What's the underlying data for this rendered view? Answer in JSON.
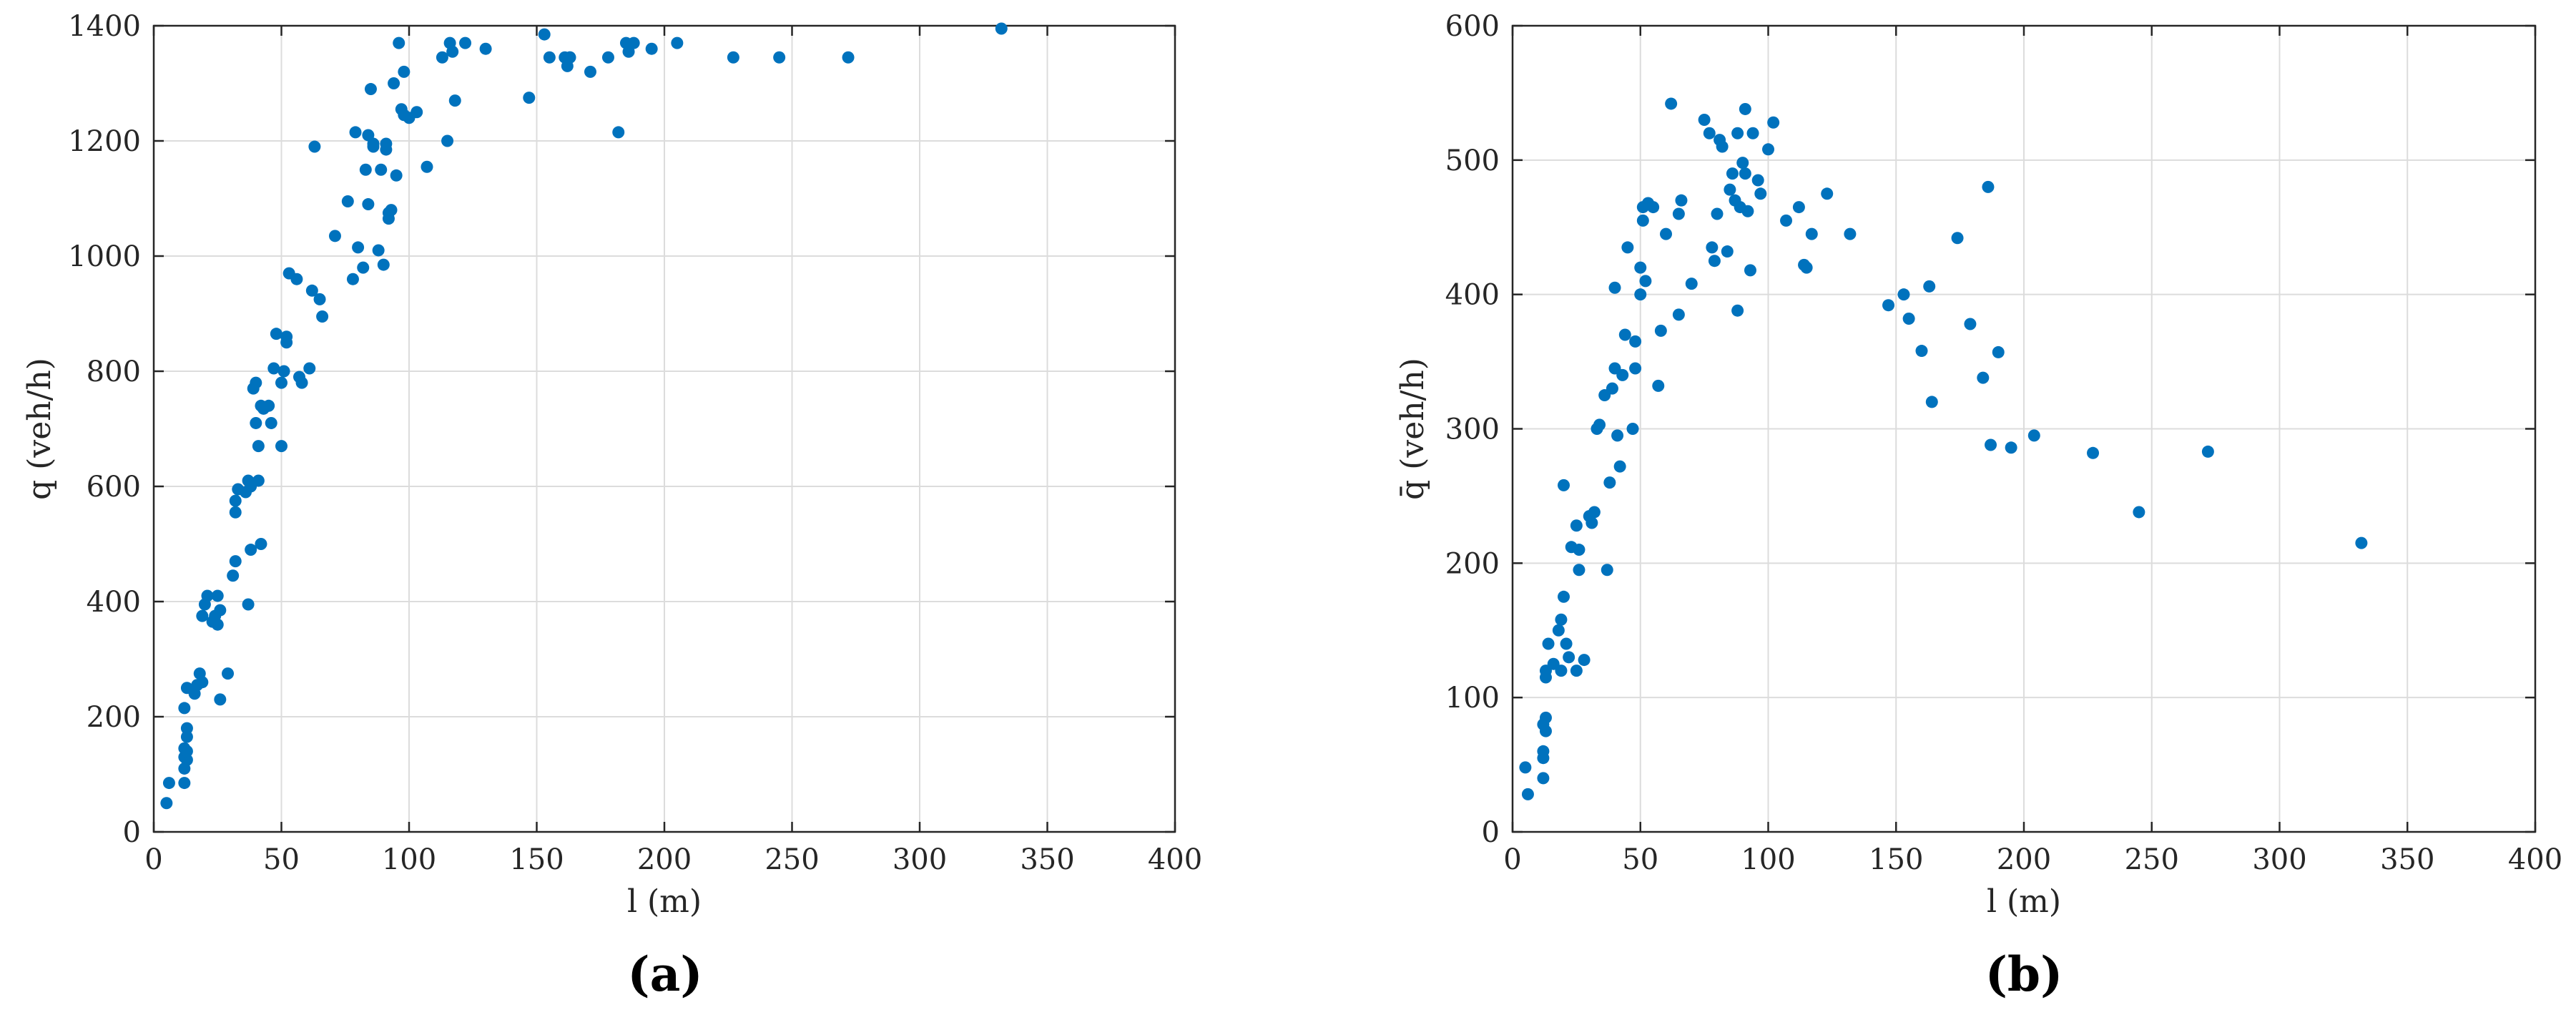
{
  "chart_data": [
    {
      "type": "scatter",
      "panel_label": "(a)",
      "xlabel": "l (m)",
      "ylabel": "q (veh/h)",
      "xlim": [
        0,
        400
      ],
      "ylim": [
        0,
        1400
      ],
      "xticks": [
        0,
        50,
        100,
        150,
        200,
        250,
        300,
        350,
        400
      ],
      "yticks": [
        0,
        200,
        400,
        600,
        800,
        1000,
        1200,
        1400
      ],
      "grid": true,
      "color": "#0072BD",
      "series": [
        {
          "x": [
            5,
            6,
            12,
            12,
            12,
            13,
            12,
            13,
            12,
            13,
            13,
            13,
            16,
            17,
            19,
            18,
            21,
            20,
            19,
            23,
            25,
            24,
            26,
            25,
            26,
            29,
            31,
            32,
            32,
            32,
            33,
            37,
            37,
            36,
            38,
            38,
            39,
            40,
            40,
            41,
            41,
            42,
            42,
            43,
            45,
            46,
            48,
            47,
            50,
            50,
            51,
            52,
            52,
            53,
            56,
            57,
            58,
            61,
            62,
            63,
            65,
            66,
            71,
            76,
            78,
            79,
            80,
            82,
            83,
            84,
            84,
            85,
            86,
            86,
            88,
            89,
            90,
            91,
            91,
            92,
            92,
            93,
            94,
            95,
            96,
            97,
            98,
            98,
            100,
            103,
            107,
            113,
            115,
            116,
            117,
            118,
            122,
            130,
            147,
            153,
            155,
            161,
            162,
            163,
            163,
            171,
            178,
            182,
            185,
            186,
            188,
            195,
            205,
            227,
            245,
            272,
            332
          ],
          "y": [
            50,
            85,
            85,
            110,
            130,
            125,
            145,
            180,
            215,
            250,
            165,
            140,
            240,
            255,
            260,
            275,
            410,
            395,
            375,
            365,
            360,
            375,
            385,
            410,
            230,
            275,
            445,
            470,
            555,
            575,
            595,
            610,
            395,
            590,
            600,
            490,
            770,
            780,
            710,
            670,
            610,
            500,
            740,
            735,
            740,
            710,
            865,
            805,
            670,
            780,
            800,
            860,
            850,
            970,
            960,
            790,
            780,
            805,
            940,
            1190,
            925,
            895,
            1035,
            1095,
            960,
            1215,
            1015,
            980,
            1150,
            1090,
            1210,
            1290,
            1190,
            1195,
            1010,
            1150,
            985,
            1185,
            1195,
            1065,
            1075,
            1080,
            1300,
            1140,
            1370,
            1255,
            1245,
            1320,
            1240,
            1250,
            1155,
            1345,
            1200,
            1370,
            1355,
            1270,
            1370,
            1360,
            1275,
            1385,
            1345,
            1345,
            1330,
            1345,
            1345,
            1320,
            1345,
            1215,
            1370,
            1355,
            1370,
            1360,
            1370,
            1345,
            1345,
            1345,
            1395
          ]
        }
      ]
    },
    {
      "type": "scatter",
      "panel_label": "(b)",
      "xlabel": "l (m)",
      "ylabel": "q̄ (veh/h)",
      "xlim": [
        0,
        400
      ],
      "ylim": [
        0,
        600
      ],
      "xticks": [
        0,
        50,
        100,
        150,
        200,
        250,
        300,
        350,
        400
      ],
      "yticks": [
        0,
        100,
        200,
        300,
        400,
        500,
        600
      ],
      "grid": true,
      "color": "#0072BD",
      "series": [
        {
          "x": [
            5,
            6,
            12,
            12,
            12,
            13,
            12,
            13,
            13,
            13,
            14,
            16,
            18,
            19,
            19,
            20,
            20,
            21,
            22,
            23,
            25,
            25,
            26,
            26,
            28,
            30,
            31,
            32,
            33,
            34,
            36,
            37,
            38,
            39,
            40,
            40,
            41,
            42,
            43,
            44,
            45,
            47,
            48,
            48,
            50,
            50,
            51,
            51,
            52,
            53,
            55,
            57,
            58,
            60,
            62,
            65,
            65,
            66,
            70,
            75,
            77,
            78,
            79,
            80,
            81,
            82,
            84,
            85,
            86,
            87,
            88,
            88,
            89,
            90,
            91,
            91,
            92,
            93,
            94,
            96,
            97,
            100,
            102,
            107,
            112,
            114,
            115,
            117,
            123,
            132,
            147,
            153,
            155,
            160,
            163,
            164,
            174,
            179,
            184,
            186,
            187,
            190,
            195,
            204,
            227,
            245,
            272,
            332
          ],
          "y": [
            48,
            28,
            40,
            55,
            60,
            75,
            80,
            85,
            115,
            120,
            140,
            125,
            150,
            158,
            120,
            258,
            175,
            140,
            130,
            212,
            120,
            228,
            210,
            195,
            128,
            235,
            230,
            238,
            300,
            303,
            325,
            195,
            260,
            330,
            405,
            345,
            295,
            272,
            340,
            370,
            435,
            300,
            345,
            365,
            400,
            420,
            455,
            465,
            410,
            468,
            465,
            332,
            373,
            445,
            542,
            385,
            460,
            470,
            408,
            530,
            520,
            435,
            425,
            460,
            515,
            510,
            432,
            478,
            490,
            470,
            520,
            388,
            465,
            498,
            538,
            490,
            462,
            418,
            520,
            485,
            475,
            508,
            528,
            455,
            465,
            422,
            420,
            445,
            475,
            445,
            392,
            400,
            382,
            358,
            406,
            320,
            442,
            378,
            338,
            480,
            288,
            357,
            286,
            295,
            282,
            238,
            283,
            215
          ]
        }
      ]
    }
  ]
}
